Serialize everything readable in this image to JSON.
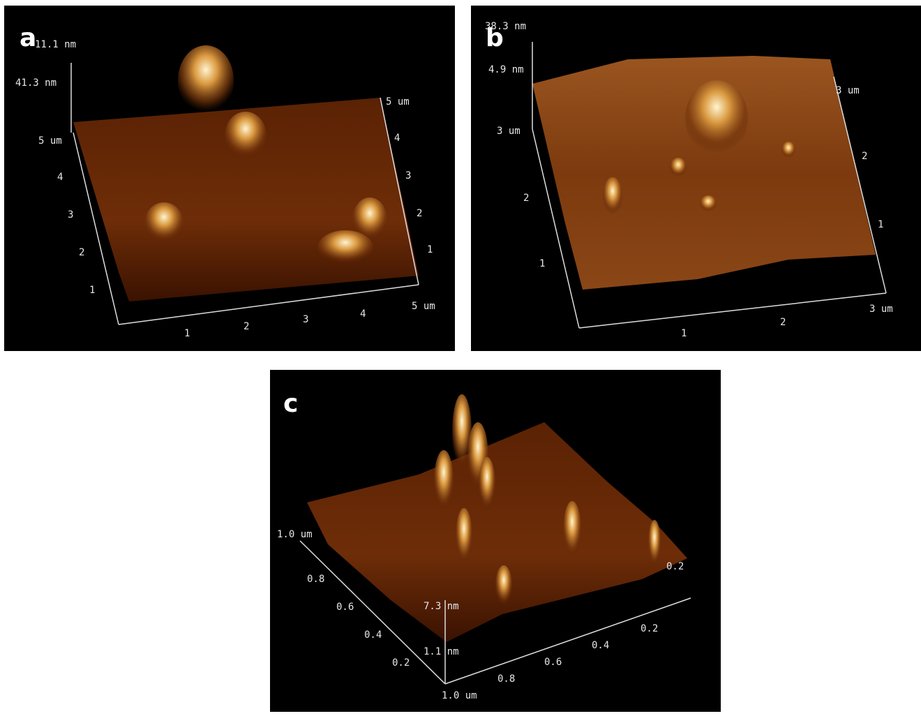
{
  "panels": [
    {
      "label": "a",
      "z_labels": [
        "11.1 nm",
        "41.3 nm"
      ],
      "left_axis": [
        "5 um",
        "4",
        "3",
        "2",
        "1"
      ],
      "right_axis": [
        "5 um",
        "4",
        "3",
        "2",
        "1"
      ],
      "bottom_axis": [
        "1",
        "2",
        "3",
        "4",
        "5 um"
      ]
    },
    {
      "label": "b",
      "z_labels": [
        "38.3 nm",
        "4.9 nm"
      ],
      "left_axis": [
        "3 um",
        "2",
        "1"
      ],
      "right_axis": [
        "3 um",
        "2",
        "1"
      ],
      "bottom_axis": [
        "1",
        "2",
        "3 um"
      ]
    },
    {
      "label": "c",
      "z_labels": [
        "7.3 nm",
        "1.1 nm"
      ],
      "left_axis": [
        "1.0 um",
        "0.8",
        "0.6",
        "0.4",
        "0.2"
      ],
      "right_axis": [
        "0.2"
      ],
      "bottom_axis": [
        "1.0 um",
        "0.8",
        "0.6",
        "0.4",
        "0.2"
      ]
    }
  ]
}
